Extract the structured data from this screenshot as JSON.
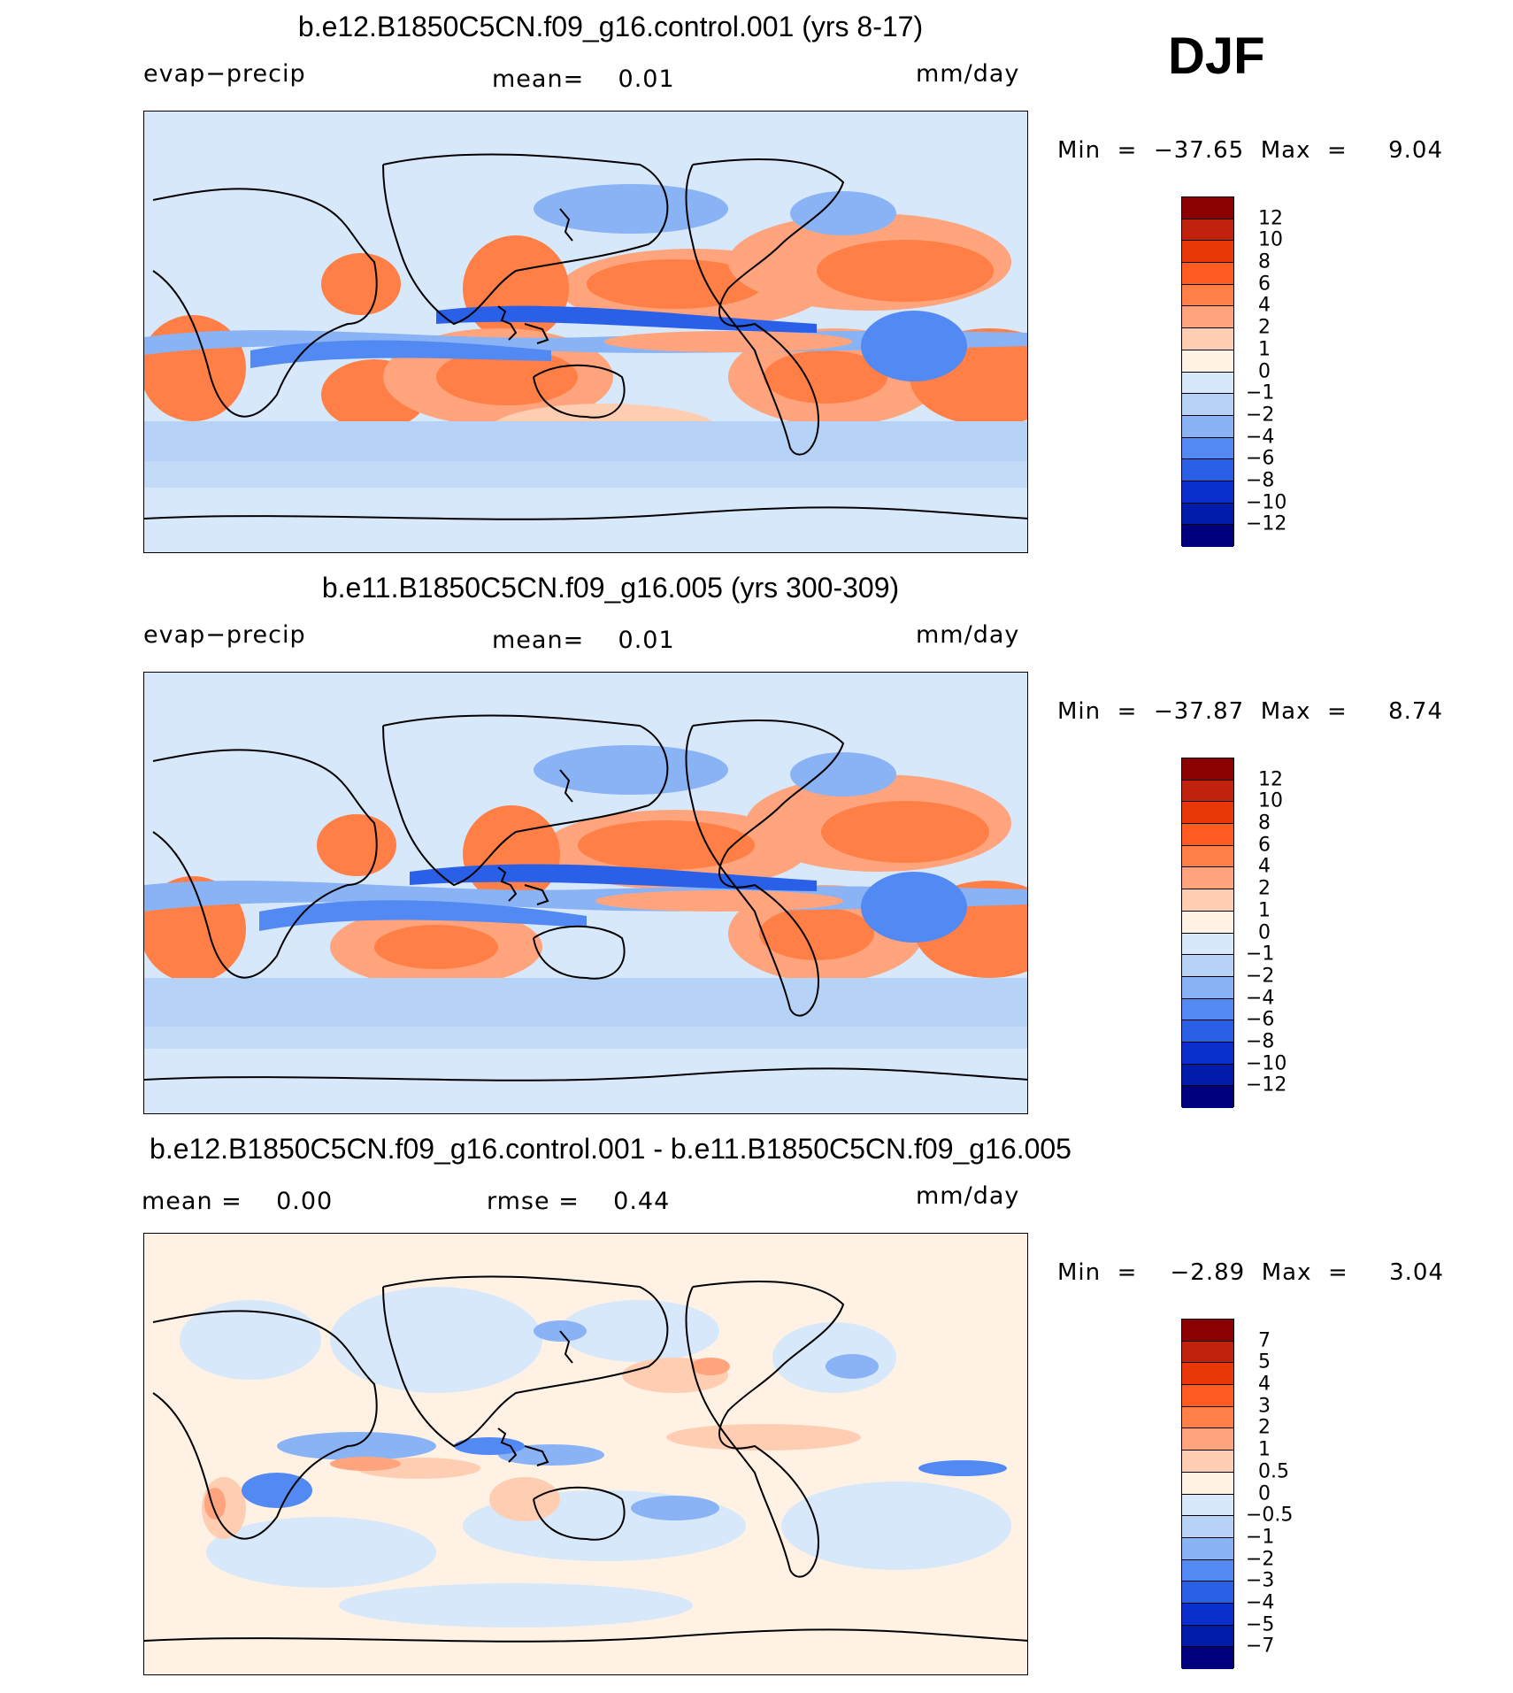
{
  "season": "DJF",
  "panels": [
    {
      "title": "b.e12.B1850C5CN.f09_g16.control.001 (yrs 8-17)",
      "left_label": "evap−precip",
      "mid_label": "mean=    0.01",
      "right_label": "mm/day",
      "min_label": "Min  =  −37.65  Max  =     9.04",
      "colorbar_ticks": [
        "12",
        "10",
        "8",
        "6",
        "4",
        "2",
        "1",
        "0",
        "−1",
        "−2",
        "−4",
        "−6",
        "−8",
        "−10",
        "−12"
      ],
      "colorbar_colors": [
        "#8b0000",
        "#c0220e",
        "#e8380a",
        "#ff5a20",
        "#ff7f46",
        "#ffa47c",
        "#ffcdb2",
        "#fff1e4",
        "#d7e8fb",
        "#b7d2f7",
        "#89b3f4",
        "#5289f2",
        "#2a5fe8",
        "#0b2fcc",
        "#021caa",
        "#00007f"
      ]
    },
    {
      "title": "b.e11.B1850C5CN.f09_g16.005 (yrs 300-309)",
      "left_label": "evap−precip",
      "mid_label": "mean=    0.01",
      "right_label": "mm/day",
      "min_label": "Min  =  −37.87  Max  =     8.74",
      "colorbar_ticks": [
        "12",
        "10",
        "8",
        "6",
        "4",
        "2",
        "1",
        "0",
        "−1",
        "−2",
        "−4",
        "−6",
        "−8",
        "−10",
        "−12"
      ],
      "colorbar_colors": [
        "#8b0000",
        "#c0220e",
        "#e8380a",
        "#ff5a20",
        "#ff7f46",
        "#ffa47c",
        "#ffcdb2",
        "#fff1e4",
        "#d7e8fb",
        "#b7d2f7",
        "#89b3f4",
        "#5289f2",
        "#2a5fe8",
        "#0b2fcc",
        "#021caa",
        "#00007f"
      ]
    },
    {
      "title": "b.e12.B1850C5CN.f09_g16.control.001 - b.e11.B1850C5CN.f09_g16.005",
      "left_label": "mean =    0.00",
      "mid_label": "rmse =    0.44",
      "right_label": "mm/day",
      "min_label": "Min  =    −2.89  Max  =     3.04",
      "colorbar_ticks": [
        "7",
        "5",
        "4",
        "3",
        "2",
        "1",
        "0.5",
        "0",
        "−0.5",
        "−1",
        "−2",
        "−3",
        "−4",
        "−5",
        "−7"
      ],
      "colorbar_colors": [
        "#8b0000",
        "#c0220e",
        "#e8380a",
        "#ff5a20",
        "#ff7f46",
        "#ffa47c",
        "#ffcdb2",
        "#fff1e4",
        "#d7e8fb",
        "#b7d2f7",
        "#89b3f4",
        "#5289f2",
        "#2a5fe8",
        "#0b2fcc",
        "#021caa",
        "#00007f"
      ]
    }
  ]
}
